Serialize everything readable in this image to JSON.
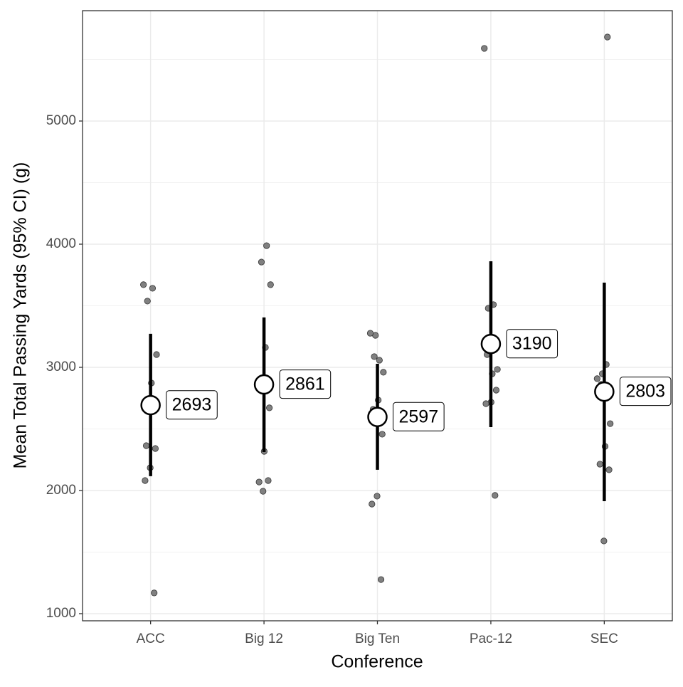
{
  "chart_data": {
    "type": "pointrange",
    "x_label": "Conference",
    "y_label": "Mean Total Passing Yards (95% CI) (g)",
    "categories": [
      "ACC",
      "Big 12",
      "Big Ten",
      "Pac-12",
      "SEC"
    ],
    "values": [
      2693,
      2861,
      2597,
      3190,
      2803
    ],
    "ci_low": [
      2116,
      2312,
      2168,
      2514,
      1913
    ],
    "ci_high": [
      3272,
      3405,
      3029,
      3861,
      3688
    ],
    "points": [
      [
        3671,
        3642,
        3538,
        3104,
        2873,
        2364,
        2341,
        2185,
        2081,
        1168
      ],
      [
        3988,
        3855,
        3671,
        3162,
        2844,
        2671,
        2318,
        2069,
        2081,
        1994
      ],
      [
        3260,
        3277,
        3058,
        3087,
        2960,
        2734,
        2659,
        2457,
        1954,
        1890,
        1277
      ],
      [
        5590,
        3509,
        3480,
        2983,
        2948,
        3104,
        2815,
        2717,
        2705,
        1960
      ],
      [
        5682,
        2948,
        2908,
        3023,
        2861,
        2543,
        2358,
        2214,
        2168,
        1590
      ]
    ],
    "ylim": [
      942,
      5896
    ],
    "yticks": [
      1000,
      2000,
      3000,
      4000,
      5000
    ],
    "grid": true,
    "point_color": "#808080"
  }
}
